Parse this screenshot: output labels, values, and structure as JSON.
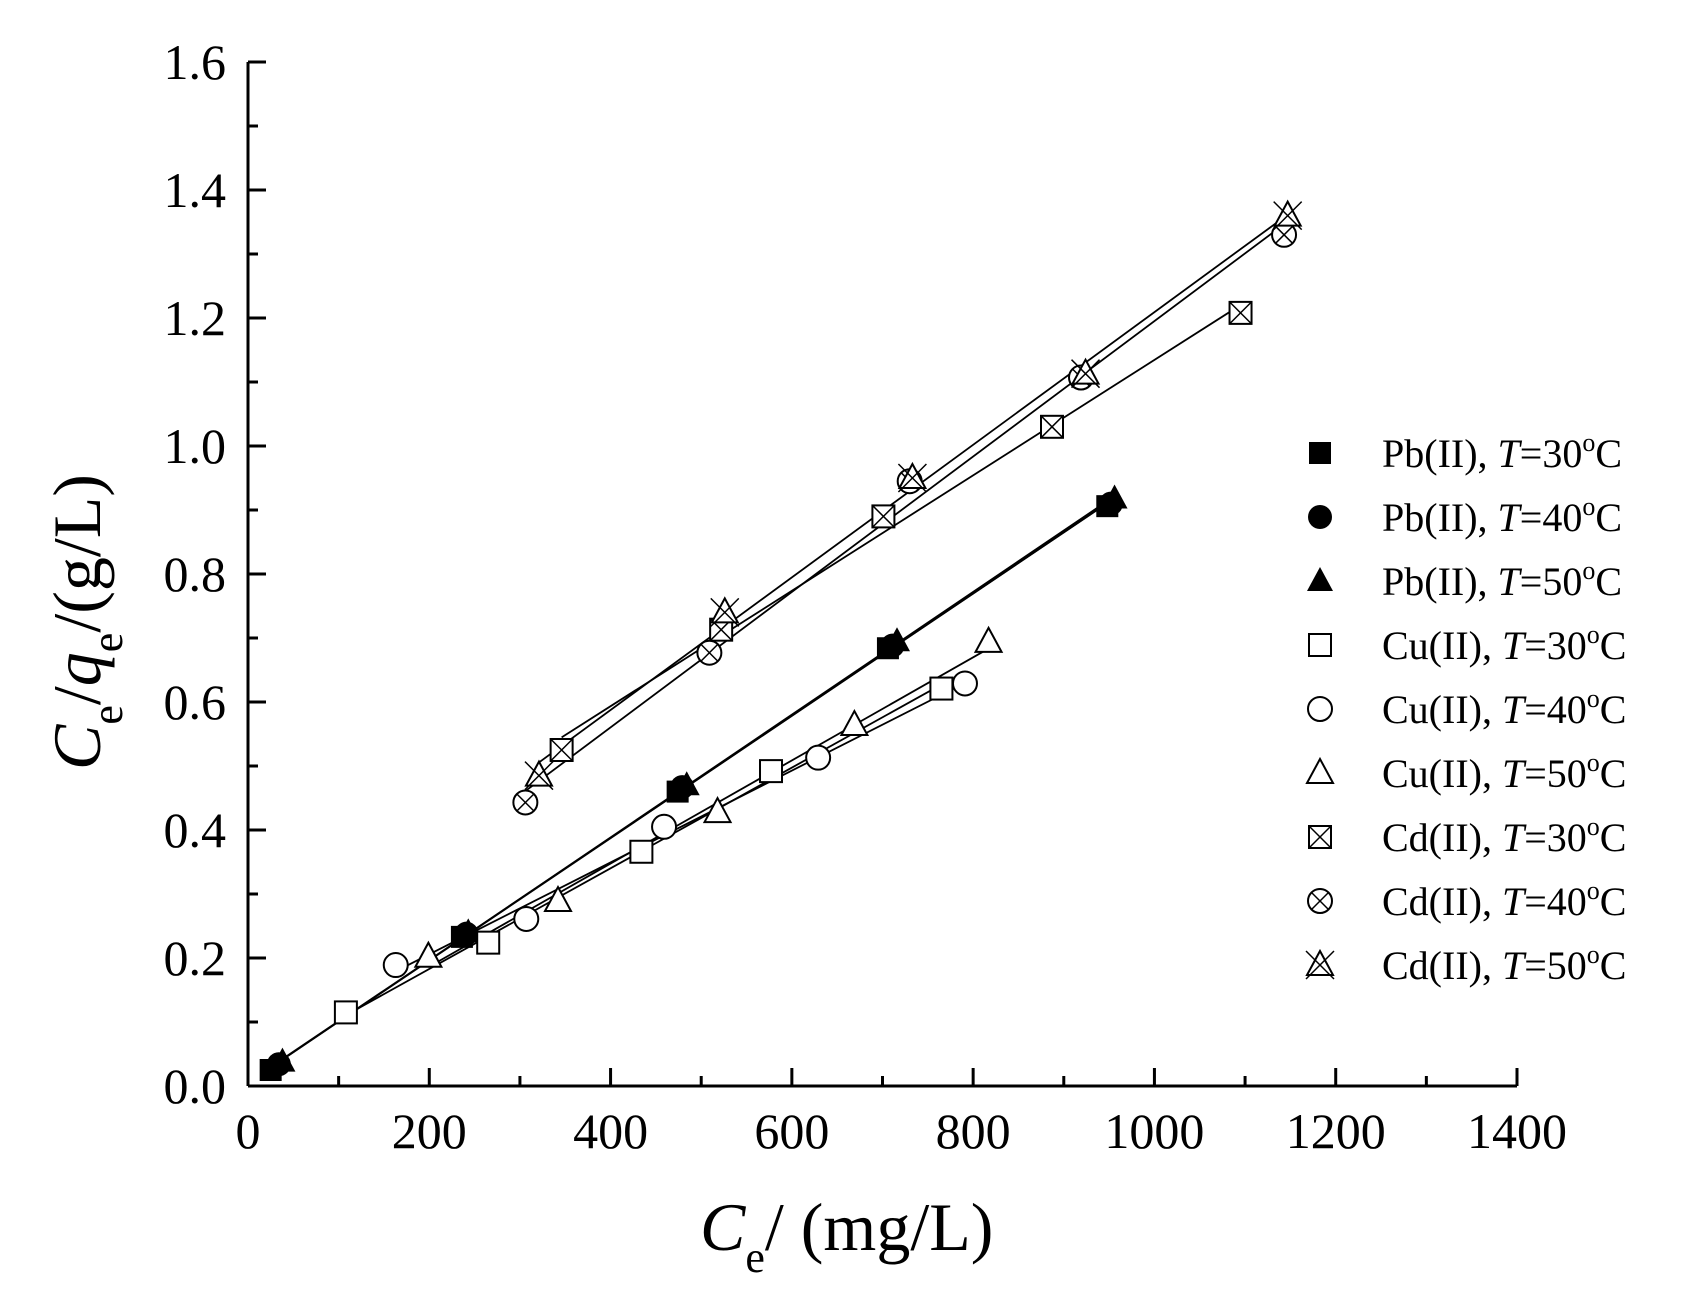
{
  "chart_data": {
    "type": "scatter",
    "title": "",
    "xlabel": {
      "main": "C",
      "sub": "e",
      "rest": "/ (mg/L)"
    },
    "ylabel": {
      "c": "C",
      "c_sub": "e",
      "slash": "/",
      "q": "q",
      "q_sub": "e",
      "rest": "/(g/L)"
    },
    "xlim": [
      0,
      1400
    ],
    "ylim": [
      0,
      1.6
    ],
    "xticks": [
      0,
      200,
      400,
      600,
      800,
      1000,
      1200,
      1400
    ],
    "yticks": [
      0.0,
      0.2,
      0.4,
      0.6,
      0.8,
      1.0,
      1.2,
      1.4,
      1.6
    ],
    "xtick_labels": [
      "0",
      "200",
      "400",
      "600",
      "800",
      "1000",
      "1200",
      "1400"
    ],
    "ytick_labels": [
      "0.0",
      "0.2",
      "0.4",
      "0.6",
      "0.8",
      "1.0",
      "1.2",
      "1.4",
      "1.6"
    ],
    "legend_position": "right",
    "series": [
      {
        "ion": "Pb(II)",
        "temp": "30",
        "marker": "filled-square",
        "x": [
          25,
          236,
          474,
          706,
          948
        ],
        "y": [
          0.025,
          0.233,
          0.46,
          0.684,
          0.906
        ]
      },
      {
        "ion": "Pb(II)",
        "temp": "40",
        "marker": "filled-circle",
        "x": [
          34,
          241,
          479,
          711,
          952
        ],
        "y": [
          0.034,
          0.238,
          0.467,
          0.688,
          0.91
        ]
      },
      {
        "ion": "Pb(II)",
        "temp": "50",
        "marker": "filled-triangle",
        "x": [
          38,
          243,
          484,
          716,
          956
        ],
        "y": [
          0.038,
          0.24,
          0.47,
          0.695,
          0.918
        ]
      },
      {
        "ion": "Cu(II)",
        "temp": "30",
        "marker": "open-square",
        "x": [
          108,
          265,
          434,
          577,
          765
        ],
        "y": [
          0.115,
          0.224,
          0.366,
          0.492,
          0.621
        ]
      },
      {
        "ion": "Cu(II)",
        "temp": "40",
        "marker": "open-circle",
        "x": [
          163,
          307,
          459,
          629,
          791
        ],
        "y": [
          0.189,
          0.261,
          0.405,
          0.513,
          0.629
        ]
      },
      {
        "ion": "Cu(II)",
        "temp": "50",
        "marker": "open-triangle",
        "x": [
          199,
          342,
          518,
          669,
          817
        ],
        "y": [
          0.202,
          0.289,
          0.428,
          0.564,
          0.694
        ]
      },
      {
        "ion": "Cd(II)",
        "temp": "30",
        "marker": "box-x",
        "x": [
          346,
          522,
          701,
          887,
          1095
        ],
        "y": [
          0.525,
          0.713,
          0.89,
          1.03,
          1.208
        ]
      },
      {
        "ion": "Cd(II)",
        "temp": "40",
        "marker": "circle-x",
        "x": [
          306,
          509,
          730,
          919,
          1143
        ],
        "y": [
          0.443,
          0.677,
          0.945,
          1.107,
          1.33
        ]
      },
      {
        "ion": "Cd(II)",
        "temp": "50",
        "marker": "triangle-x",
        "x": [
          321,
          526,
          733,
          924,
          1147
        ],
        "y": [
          0.485,
          0.74,
          0.95,
          1.113,
          1.36
        ]
      }
    ],
    "legend_prefix": ", ",
    "legend_t": "T",
    "legend_eq": "=",
    "legend_deg": "o",
    "legend_unit": "C"
  }
}
